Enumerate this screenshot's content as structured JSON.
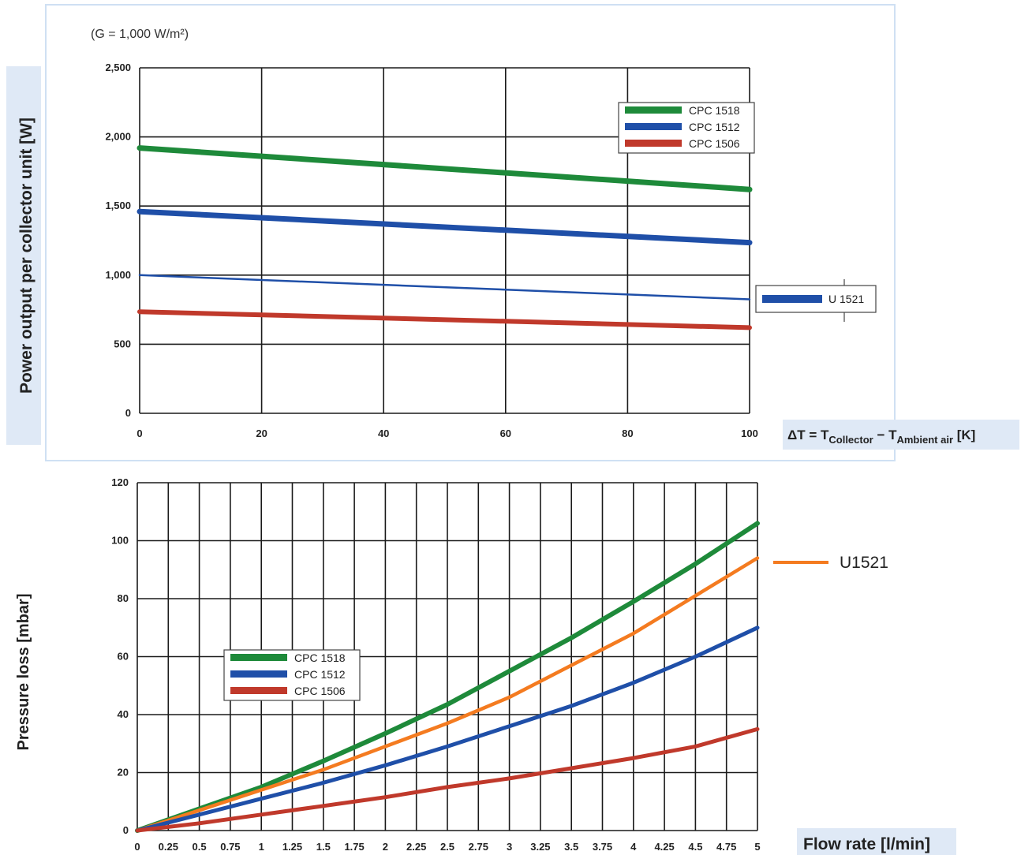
{
  "chart_data": [
    {
      "type": "line",
      "note": "(G = 1,000 W/m²)",
      "ylabel": "Power output per collector unit [W]",
      "xlabel": {
        "prefix": "ΔT = T",
        "sub1": "Collector",
        "mid": " − T",
        "sub2": "Ambient air",
        "suffix": " [K]"
      },
      "xlim": [
        0,
        100
      ],
      "ylim": [
        0,
        2500
      ],
      "x_ticks": [
        0,
        20,
        40,
        60,
        80,
        100
      ],
      "x_tick_labels": [
        "0",
        "20",
        "40",
        "60",
        "80",
        "100"
      ],
      "y_ticks": [
        0,
        500,
        1000,
        1500,
        2000,
        2500
      ],
      "y_tick_labels": [
        "0",
        "500",
        "1,000",
        "1,500",
        "2,000",
        "2,500"
      ],
      "grid": true,
      "legend_position": "top-right",
      "series": [
        {
          "name": "CPC 1518",
          "color": "#1e8a3a",
          "x": [
            0,
            100
          ],
          "y": [
            1920,
            1620
          ]
        },
        {
          "name": "CPC 1512",
          "color": "#1f4fa8",
          "x": [
            0,
            100
          ],
          "y": [
            1460,
            1235
          ]
        },
        {
          "name": "U 1521",
          "color": "#1f4fa8",
          "x": [
            0,
            100
          ],
          "y": [
            1000,
            825
          ]
        },
        {
          "name": "CPC 1506",
          "color": "#c0392b",
          "x": [
            0,
            100
          ],
          "y": [
            735,
            620
          ]
        }
      ]
    },
    {
      "type": "line",
      "ylabel": "Pressure loss [mbar]",
      "xlabel": "Flow rate [l/min]",
      "xlim": [
        0,
        5
      ],
      "ylim": [
        0,
        120
      ],
      "x_ticks": [
        0,
        0.25,
        0.5,
        0.75,
        1,
        1.25,
        1.5,
        1.75,
        2,
        2.25,
        2.5,
        2.75,
        3,
        3.25,
        3.5,
        3.75,
        4,
        4.25,
        4.5,
        4.75,
        5
      ],
      "x_tick_labels": [
        "0",
        "0.25",
        "0.5",
        "0.75",
        "1",
        "1.25",
        "1.5",
        "1.75",
        "2",
        "2.25",
        "2.5",
        "2.75",
        "3",
        "3.25",
        "3.5",
        "3.75",
        "4",
        "4.25",
        "4.5",
        "4.75",
        "5"
      ],
      "y_ticks": [
        0,
        20,
        40,
        60,
        80,
        100,
        120
      ],
      "y_tick_labels": [
        "0",
        "20",
        "40",
        "60",
        "80",
        "100",
        "120"
      ],
      "grid": true,
      "legend_position": "center-left",
      "series": [
        {
          "name": "CPC 1518",
          "color": "#1e8a3a",
          "x": [
            0,
            0.5,
            1,
            1.5,
            2,
            2.5,
            3,
            3.5,
            4,
            4.5,
            5
          ],
          "y": [
            0,
            7.5,
            15,
            24,
            33.5,
            43.5,
            55,
            66.5,
            79,
            92,
            106
          ]
        },
        {
          "name": "U1521",
          "color": "#f47b20",
          "x": [
            0,
            0.5,
            1,
            1.5,
            2,
            2.5,
            3,
            3.5,
            4,
            4.5,
            5
          ],
          "y": [
            0,
            7,
            14,
            21,
            29,
            37,
            46,
            57,
            68,
            81,
            94
          ]
        },
        {
          "name": "CPC 1512",
          "color": "#1f4fa8",
          "x": [
            0,
            0.5,
            1,
            1.5,
            2,
            2.5,
            3,
            3.5,
            4,
            4.5,
            5
          ],
          "y": [
            0,
            5.5,
            11,
            16.5,
            22.5,
            29,
            36,
            43,
            51,
            60,
            70
          ]
        },
        {
          "name": "CPC 1506",
          "color": "#c0392b",
          "x": [
            0,
            0.5,
            1,
            1.5,
            2,
            2.5,
            3,
            3.5,
            4,
            4.5,
            5
          ],
          "y": [
            0,
            2.5,
            5.5,
            8.5,
            11.5,
            15,
            18,
            21.5,
            25,
            29,
            35
          ]
        }
      ]
    }
  ]
}
